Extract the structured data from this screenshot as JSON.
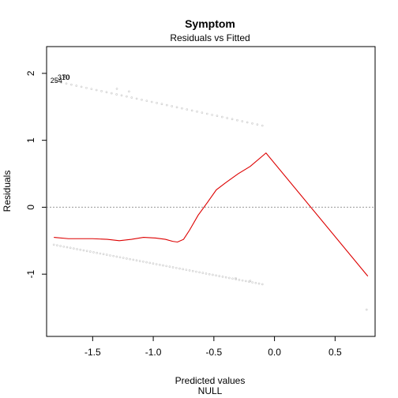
{
  "chart_data": {
    "type": "scatter",
    "title": "Symptom",
    "subtitle": "Residuals vs Fitted",
    "xlabel": "Predicted values",
    "xlabel2": "NULL",
    "ylabel": "Residuals",
    "xlim": [
      -1.88,
      0.83
    ],
    "ylim": [
      -1.93,
      2.4
    ],
    "x_ticks": [
      -1.5,
      -1.0,
      -0.5,
      0.0,
      0.5
    ],
    "x_tick_labels": [
      "-1.5",
      "-1.0",
      "-0.5",
      "0.0",
      "0.5"
    ],
    "y_ticks": [
      -1,
      0,
      1,
      2
    ],
    "y_tick_labels": [
      "-1",
      "0",
      "1",
      "2"
    ],
    "reference_line_y": 0,
    "grid": false,
    "colors": {
      "points": "#9a9a9a",
      "smooth": "#dd0000",
      "refline": "#9a9a9a"
    },
    "point_labels": [
      {
        "text": "254",
        "x": -1.8,
        "y": 1.89
      },
      {
        "text": "70",
        "x": -1.72,
        "y": 1.94
      },
      {
        "text": "310",
        "x": -1.74,
        "y": 1.94
      }
    ],
    "upper_band": {
      "x_start": -1.8,
      "x_end": -0.1,
      "y_start": 1.88,
      "y_end": 1.22,
      "points": 42
    },
    "lower_band": {
      "x_start": -1.82,
      "x_end": -0.1,
      "y_start": -0.56,
      "y_end": -1.15,
      "points": 64
    },
    "extra_points": [
      {
        "x": 0.76,
        "y": -1.53
      },
      {
        "x": -0.32,
        "y": -1.06
      },
      {
        "x": -0.2,
        "y": -1.1
      },
      {
        "x": -1.3,
        "y": 1.77
      },
      {
        "x": -1.2,
        "y": 1.73
      }
    ],
    "smooth_line": {
      "x": [
        -1.82,
        -1.7,
        -1.5,
        -1.38,
        -1.28,
        -1.18,
        -1.08,
        -0.98,
        -0.9,
        -0.84,
        -0.8,
        -0.75,
        -0.7,
        -0.63,
        -0.55,
        -0.48,
        -0.4,
        -0.3,
        -0.2,
        -0.07,
        0.77
      ],
      "y": [
        -0.45,
        -0.47,
        -0.47,
        -0.48,
        -0.5,
        -0.48,
        -0.45,
        -0.46,
        -0.48,
        -0.51,
        -0.52,
        -0.48,
        -0.34,
        -0.12,
        0.08,
        0.26,
        0.37,
        0.5,
        0.61,
        0.81,
        -1.03
      ]
    }
  }
}
